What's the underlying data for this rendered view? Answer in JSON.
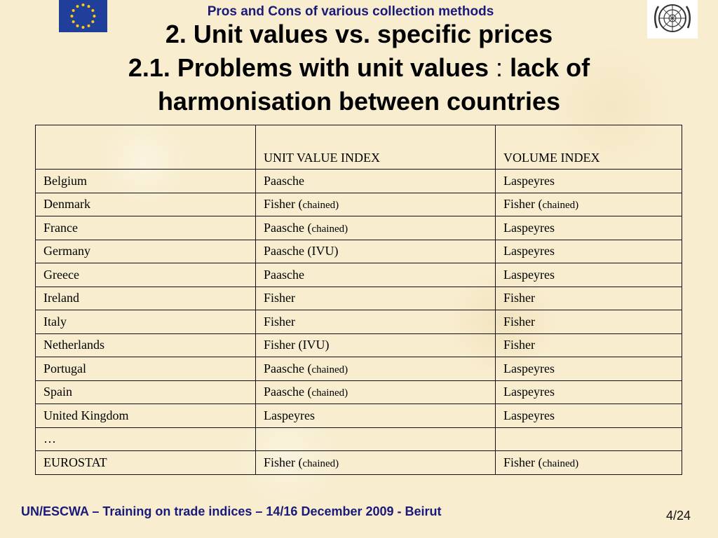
{
  "header": {
    "supertitle": "Pros and Cons of various collection methods",
    "title_line1": "2. Unit values vs. specific prices",
    "title_line2_a": "2.1. Problems with unit values",
    "title_line2_sep": ":",
    "title_line2_b": "lack of",
    "title_line3": "harmonisation between countries"
  },
  "colors": {
    "eu_blue": "#1f3f9a",
    "eu_star": "#ffcc00",
    "title_blue": "#1a1a7a"
  },
  "table": {
    "headers": [
      "",
      "UNIT VALUE INDEX",
      "VOLUME  INDEX"
    ],
    "rows": [
      {
        "country": "Belgium",
        "unit": "Paasche",
        "unit_note": "",
        "volume": "Laspeyres",
        "volume_note": ""
      },
      {
        "country": "Denmark",
        "unit": "Fisher (",
        "unit_note": "chained)",
        "volume": "Fisher (",
        "volume_note": "chained)"
      },
      {
        "country": "France",
        "unit": "Paasche (",
        "unit_note": "chained)",
        "volume": "Laspeyres",
        "volume_note": ""
      },
      {
        "country": "Germany",
        "unit": "Paasche (IVU)",
        "unit_note": "",
        "volume": "Laspeyres",
        "volume_note": ""
      },
      {
        "country": "Greece",
        "unit": "Paasche",
        "unit_note": "",
        "volume": "Laspeyres",
        "volume_note": ""
      },
      {
        "country": "Ireland",
        "unit": "Fisher",
        "unit_note": "",
        "volume": "Fisher",
        "volume_note": ""
      },
      {
        "country": "Italy",
        "unit": "Fisher",
        "unit_note": "",
        "volume": "Fisher",
        "volume_note": ""
      },
      {
        "country": "Netherlands",
        "unit": "Fisher (IVU)",
        "unit_note": "",
        "volume": "Fisher",
        "volume_note": ""
      },
      {
        "country": "Portugal",
        "unit": "Paasche (",
        "unit_note": "chained)",
        "volume": "Laspeyres",
        "volume_note": ""
      },
      {
        "country": "Spain",
        "unit": "Paasche (",
        "unit_note": "chained)",
        "volume": "Laspeyres",
        "volume_note": ""
      },
      {
        "country": "United Kingdom",
        "unit": "Laspeyres",
        "unit_note": "",
        "volume": "Laspeyres",
        "volume_note": ""
      },
      {
        "country": "…",
        "unit": "",
        "unit_note": "",
        "volume": "",
        "volume_note": ""
      },
      {
        "country": "EUROSTAT",
        "unit": "Fisher (",
        "unit_note": "chained)",
        "volume": "Fisher (",
        "volume_note": "chained)"
      }
    ]
  },
  "footer": {
    "left": "UN/ESCWA – Training on trade indices – 14/16 December 2009 - Beirut",
    "page": "4/24"
  }
}
